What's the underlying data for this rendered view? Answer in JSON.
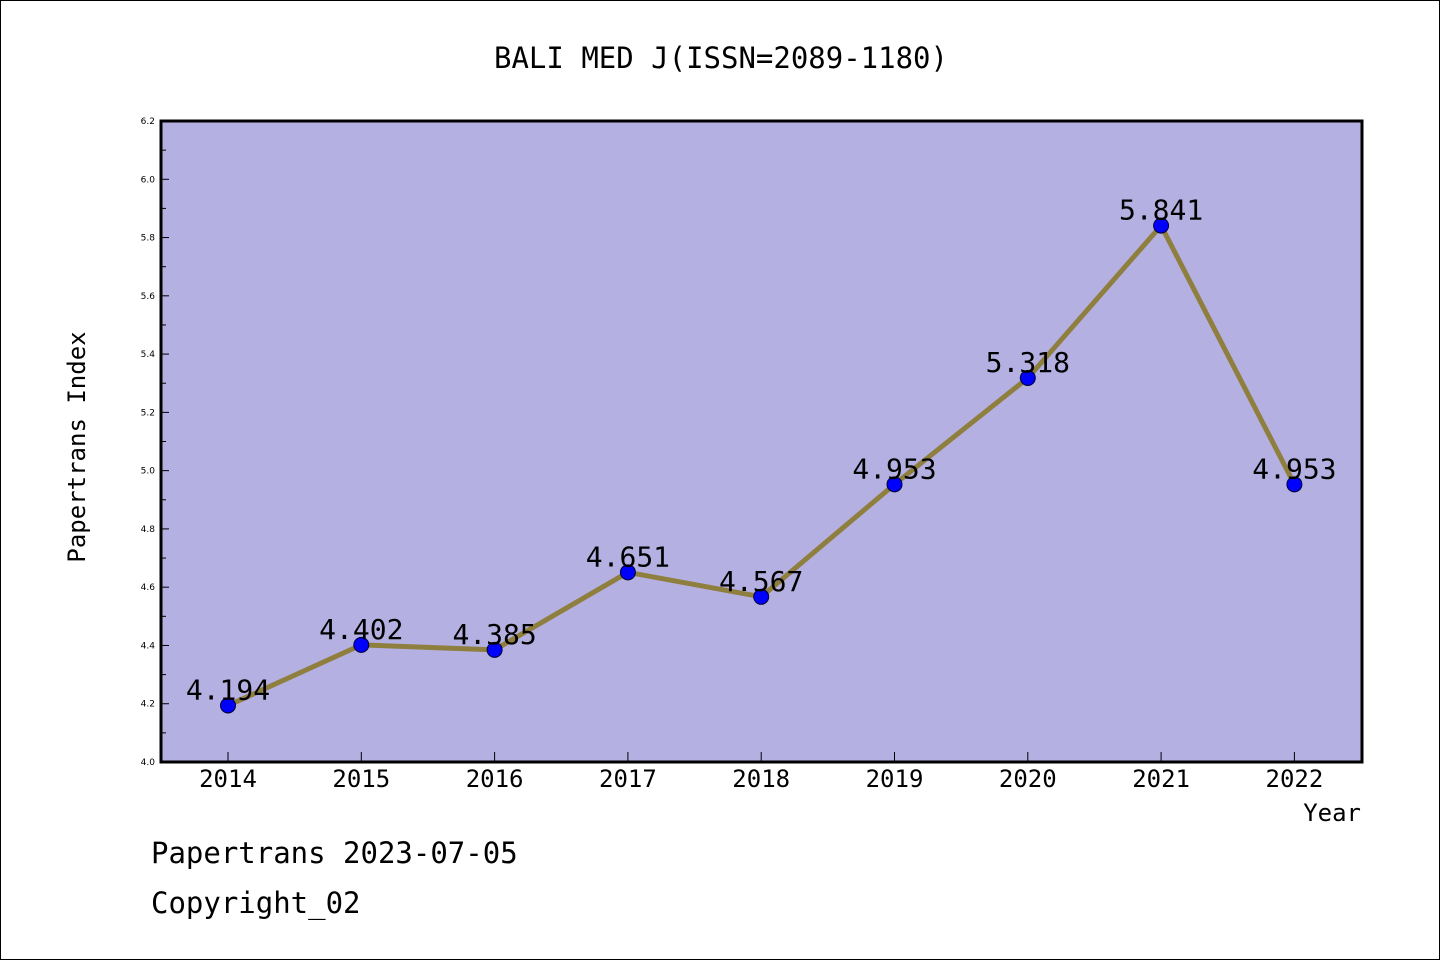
{
  "chart_data": {
    "type": "line",
    "title": "BALI MED J(ISSN=2089-1180)",
    "xlabel": "Year",
    "ylabel": "Papertrans Index",
    "x": [
      "2014",
      "2015",
      "2016",
      "2017",
      "2018",
      "2019",
      "2020",
      "2021",
      "2022"
    ],
    "values": [
      4.194,
      4.402,
      4.385,
      4.651,
      4.567,
      4.953,
      5.318,
      5.841,
      4.953
    ],
    "data_labels": [
      "4.194",
      "4.402",
      "4.385",
      "4.651",
      "4.567",
      "4.953",
      "5.318",
      "5.841",
      "4.953"
    ],
    "ylim": [
      4.0,
      6.2
    ],
    "y_ticks": [
      "4.0",
      "4.2",
      "4.4",
      "4.6",
      "4.8",
      "5.0",
      "5.2",
      "5.4",
      "5.6",
      "5.8",
      "6.0",
      "6.2"
    ],
    "grid": false,
    "colors": {
      "plot_background": "#b5b0e2",
      "line": "#8f7f3f",
      "marker": "#0000ff"
    }
  },
  "footer": {
    "date_line": "Papertrans 2023-07-05",
    "copyright_line": "Copyright_02"
  }
}
